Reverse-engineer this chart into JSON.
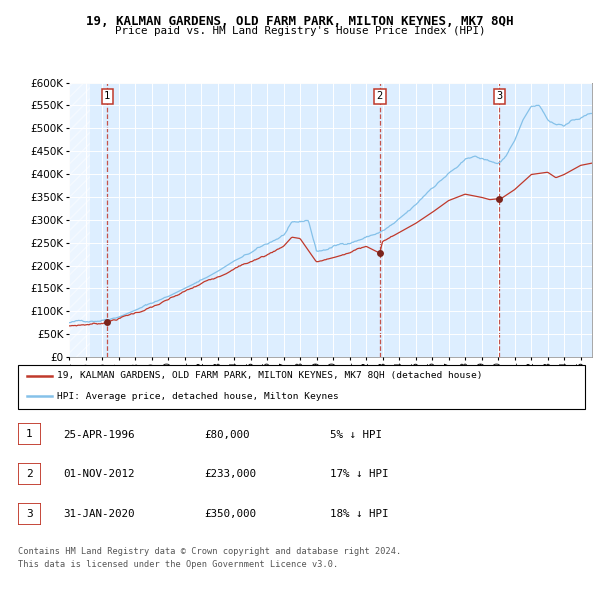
{
  "title1": "19, KALMAN GARDENS, OLD FARM PARK, MILTON KEYNES, MK7 8QH",
  "title2": "Price paid vs. HM Land Registry's House Price Index (HPI)",
  "legend_line1": "19, KALMAN GARDENS, OLD FARM PARK, MILTON KEYNES, MK7 8QH (detached house)",
  "legend_line2": "HPI: Average price, detached house, Milton Keynes",
  "footnote1": "Contains HM Land Registry data © Crown copyright and database right 2024.",
  "footnote2": "This data is licensed under the Open Government Licence v3.0.",
  "transactions": [
    {
      "num": 1,
      "date": "25-APR-1996",
      "price": 80000,
      "hpi_rel": "5% ↓ HPI",
      "year": 1996.32
    },
    {
      "num": 2,
      "date": "01-NOV-2012",
      "price": 233000,
      "hpi_rel": "17% ↓ HPI",
      "year": 2012.83
    },
    {
      "num": 3,
      "date": "31-JAN-2020",
      "price": 350000,
      "hpi_rel": "18% ↓ HPI",
      "year": 2020.08
    }
  ],
  "hpi_color": "#85c1e9",
  "price_color": "#c0392b",
  "plot_bg": "#ddeeff",
  "grid_color": "#ffffff",
  "vline_color": "#c0392b",
  "marker_color": "#7b241c",
  "ylim": [
    0,
    600000
  ],
  "yticks": [
    0,
    50000,
    100000,
    150000,
    200000,
    250000,
    300000,
    350000,
    400000,
    450000,
    500000,
    550000,
    600000
  ],
  "xlim_start": 1994.0,
  "xlim_end": 2025.7
}
